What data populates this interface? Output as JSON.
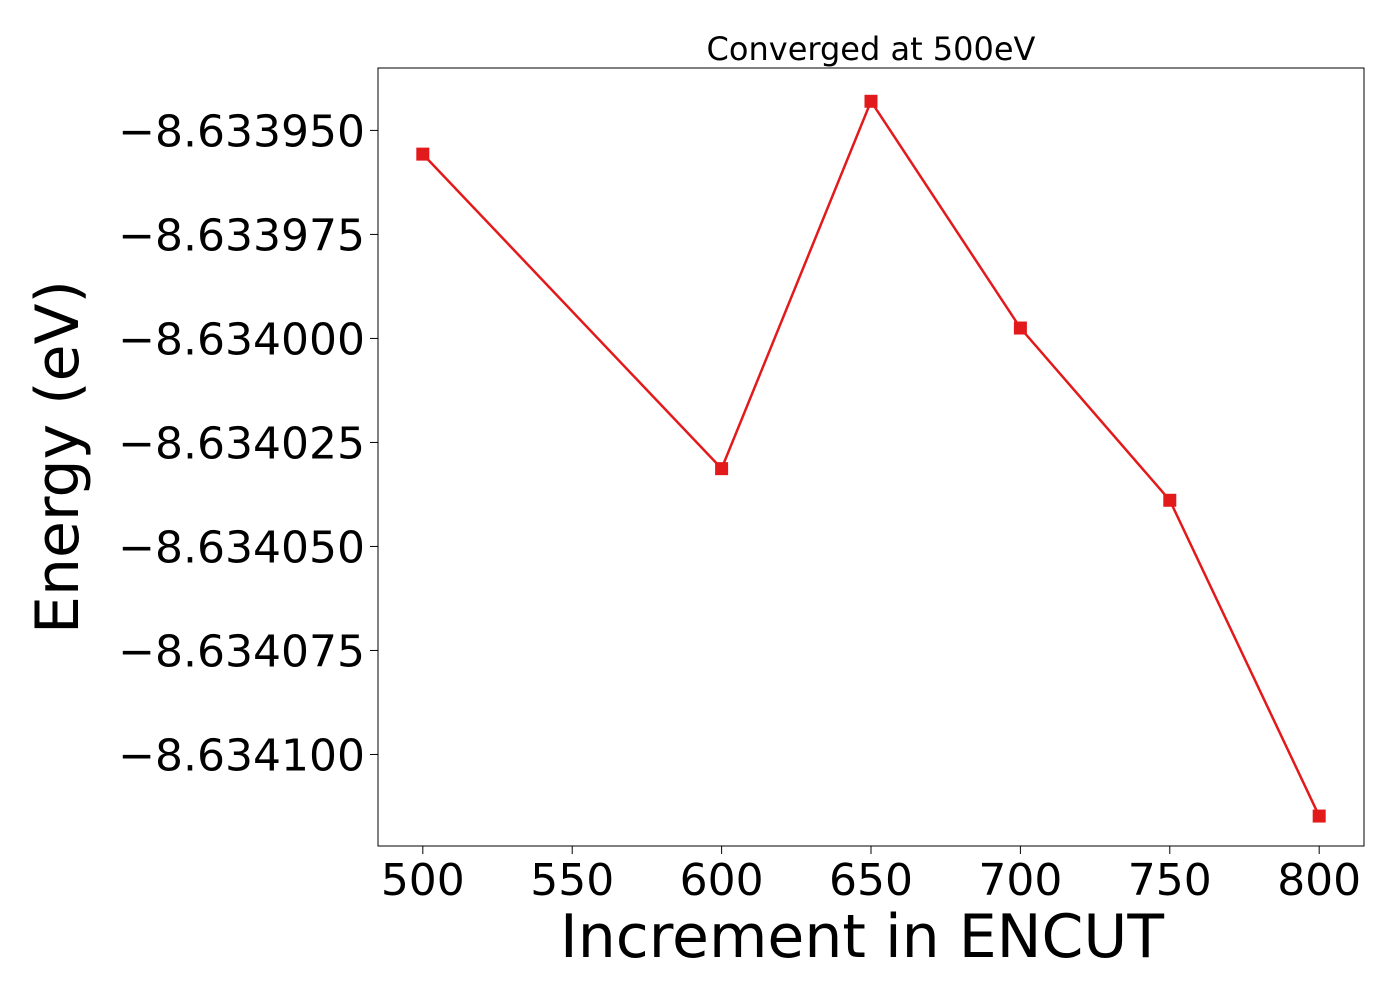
{
  "chart_data": {
    "type": "line",
    "title": "Converged at 500eV",
    "xlabel": "Increment in ENCUT",
    "ylabel": "Energy (eV)",
    "x": [
      500,
      600,
      650,
      700,
      750,
      800
    ],
    "series": [
      {
        "values": [
          -8.6339557,
          -8.6340313,
          -8.633943,
          -8.6339975,
          -8.6340389,
          -8.6341148
        ],
        "color": "#e31a1c",
        "marker": "square"
      }
    ],
    "xlim": [
      485,
      815
    ],
    "ylim": [
      -8.634122,
      -8.633935
    ],
    "x_ticks": [
      500,
      550,
      600,
      650,
      700,
      750,
      800
    ],
    "x_tick_labels": [
      "500",
      "550",
      "600",
      "650",
      "700",
      "750",
      "800"
    ],
    "y_ticks": [
      -8.63395,
      -8.633975,
      -8.634,
      -8.634025,
      -8.63405,
      -8.634075,
      -8.6341
    ],
    "y_tick_labels": [
      "−8.633950",
      "−8.633975",
      "−8.634000",
      "−8.634025",
      "−8.634050",
      "−8.634075",
      "−8.634100"
    ],
    "grid": false,
    "legend": "none"
  }
}
